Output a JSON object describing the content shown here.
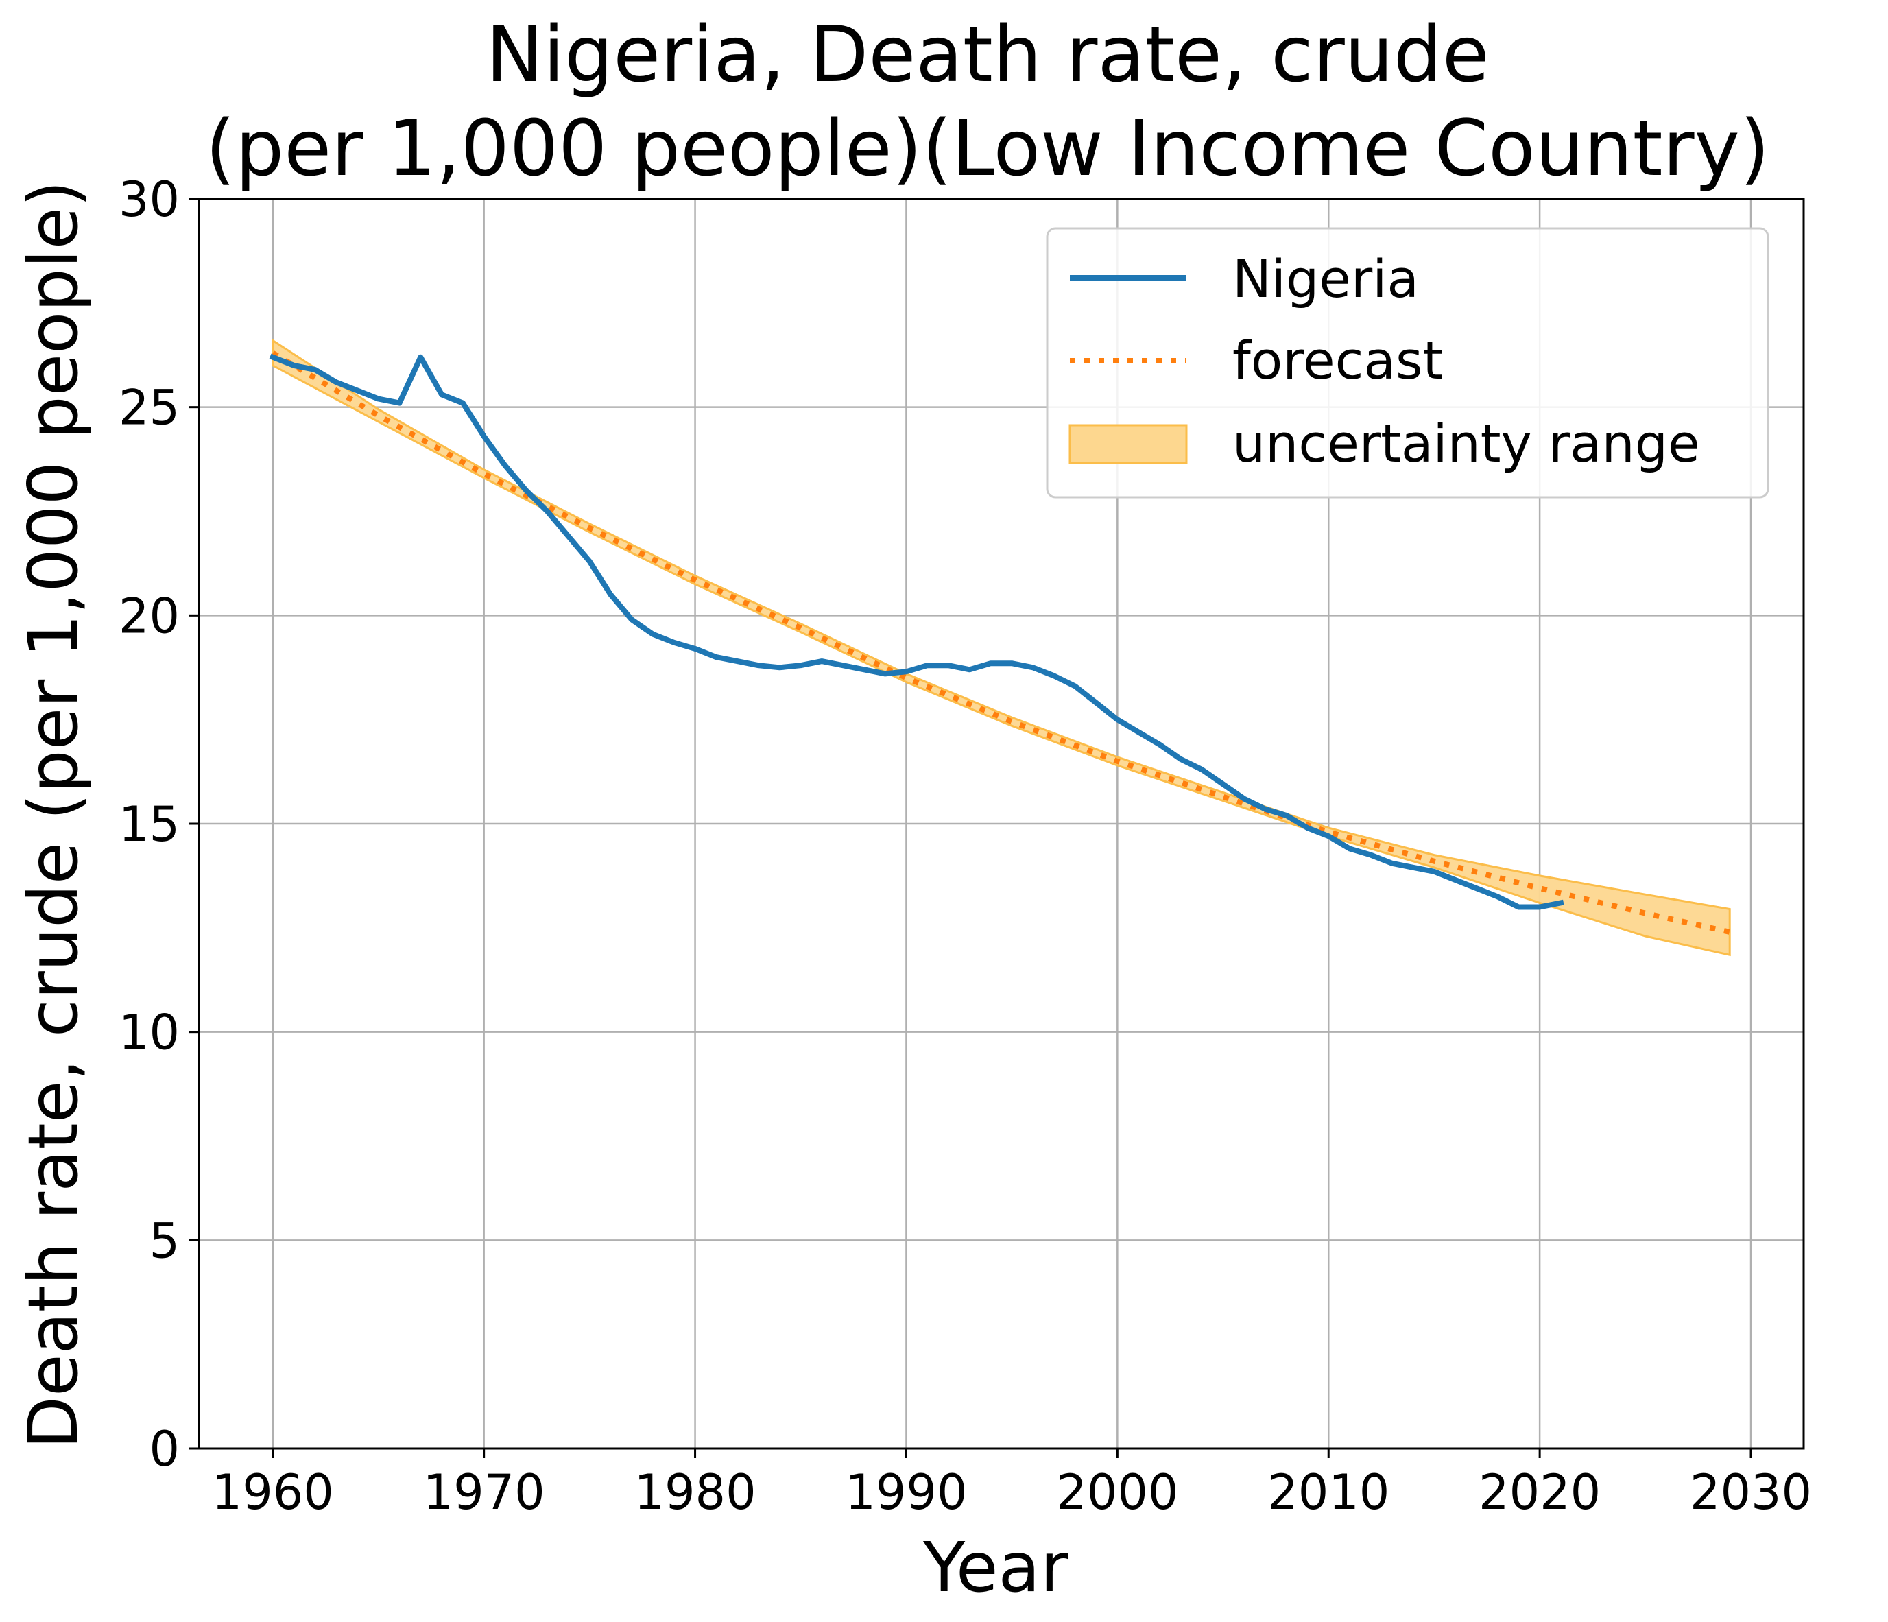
{
  "chart_data": {
    "type": "line",
    "title_line1": "Nigeria, Death rate, crude",
    "title_line2": "(per 1,000 people)(Low Income Country)",
    "title_color": "#0a5cb8",
    "xlabel": "Year",
    "ylabel": "Death rate, crude (per 1,000 people)",
    "xlim": [
      1956.5,
      2032.5
    ],
    "ylim": [
      0,
      30
    ],
    "xticks": [
      1960,
      1970,
      1980,
      1990,
      2000,
      2010,
      2020,
      2030
    ],
    "yticks": [
      0,
      5,
      10,
      15,
      20,
      25,
      30
    ],
    "grid": true,
    "legend": {
      "position": "top-right",
      "entries": [
        "Nigeria",
        "forecast",
        "uncertainty range"
      ]
    },
    "colors": {
      "actual": "#1f77b4",
      "forecast": "#ff7f0e",
      "band_fill": "#fdd78f",
      "band_edge": "#fbbd4a"
    },
    "series": [
      {
        "name": "Nigeria",
        "style": "solid",
        "x": [
          1960,
          1961,
          1962,
          1963,
          1964,
          1965,
          1966,
          1967,
          1968,
          1969,
          1970,
          1971,
          1972,
          1973,
          1974,
          1975,
          1976,
          1977,
          1978,
          1979,
          1980,
          1981,
          1982,
          1983,
          1984,
          1985,
          1986,
          1987,
          1988,
          1989,
          1990,
          1991,
          1992,
          1993,
          1994,
          1995,
          1996,
          1997,
          1998,
          1999,
          2000,
          2001,
          2002,
          2003,
          2004,
          2005,
          2006,
          2007,
          2008,
          2009,
          2010,
          2011,
          2012,
          2013,
          2014,
          2015,
          2016,
          2017,
          2018,
          2019,
          2020,
          2021
        ],
        "y": [
          26.2,
          26.0,
          25.9,
          25.6,
          25.4,
          25.2,
          25.1,
          26.2,
          25.3,
          25.1,
          24.3,
          23.6,
          23.0,
          22.5,
          21.9,
          21.3,
          20.5,
          19.9,
          19.55,
          19.35,
          19.2,
          19.0,
          18.9,
          18.8,
          18.75,
          18.8,
          18.9,
          18.8,
          18.7,
          18.6,
          18.65,
          18.8,
          18.8,
          18.7,
          18.85,
          18.85,
          18.75,
          18.55,
          18.3,
          17.9,
          17.5,
          17.2,
          16.9,
          16.55,
          16.3,
          15.95,
          15.6,
          15.35,
          15.2,
          14.9,
          14.7,
          14.4,
          14.25,
          14.05,
          13.95,
          13.85,
          13.65,
          13.45,
          13.25,
          13.0,
          13.0,
          13.1
        ]
      },
      {
        "name": "forecast",
        "style": "dotted",
        "x": [
          1960,
          1965,
          1970,
          1975,
          1980,
          1985,
          1990,
          1995,
          2000,
          2005,
          2010,
          2015,
          2020,
          2025,
          2029
        ],
        "y": [
          26.3,
          24.8,
          23.4,
          22.1,
          20.85,
          19.7,
          18.5,
          17.45,
          16.5,
          15.65,
          14.8,
          14.1,
          13.45,
          12.85,
          12.4
        ]
      }
    ],
    "band": {
      "name": "uncertainty range",
      "x": [
        1960,
        1965,
        1970,
        1975,
        1980,
        1985,
        1990,
        1995,
        2000,
        2005,
        2010,
        2015,
        2020,
        2025,
        2029
      ],
      "lower": [
        26.0,
        24.65,
        23.3,
        22.0,
        20.75,
        19.6,
        18.4,
        17.35,
        16.4,
        15.55,
        14.7,
        13.95,
        13.1,
        12.3,
        11.85
      ],
      "upper": [
        26.6,
        24.95,
        23.5,
        22.2,
        20.95,
        19.8,
        18.6,
        17.55,
        16.6,
        15.75,
        14.9,
        14.25,
        13.75,
        13.3,
        12.95
      ]
    }
  }
}
